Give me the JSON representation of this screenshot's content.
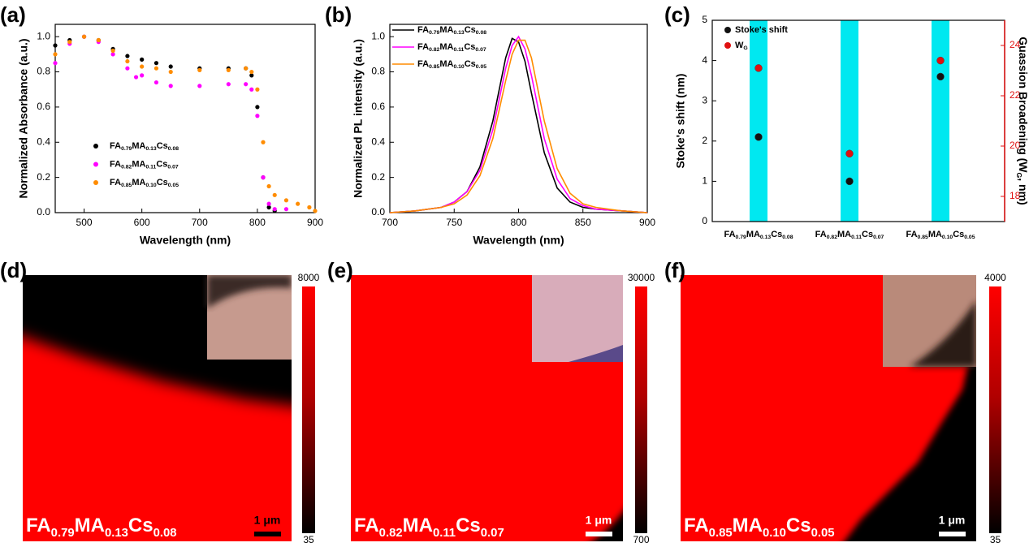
{
  "chart_data": [
    {
      "type": "scatter",
      "panel": "(a)",
      "x_label": "Wavelength (nm)",
      "y_label": "Normalized Absorbance (a.u.)",
      "xlim": [
        450,
        900
      ],
      "xticks": [
        500,
        600,
        700,
        800,
        900
      ],
      "ylim": [
        0,
        1.07
      ],
      "yticks": [
        {
          "value": 0,
          "label": "0.0"
        },
        0.2,
        0.4,
        0.6,
        0.8,
        {
          "value": 1,
          "label": "1.0"
        }
      ],
      "series": [
        {
          "name": "FA0.79MA0.13Cs0.08",
          "color": "#000000",
          "x": [
            450,
            475,
            500,
            525,
            550,
            575,
            600,
            625,
            650,
            700,
            750,
            780,
            790,
            800,
            810,
            820,
            830
          ],
          "values": [
            0.95,
            0.98,
            1.0,
            0.98,
            0.93,
            0.89,
            0.87,
            0.85,
            0.83,
            0.82,
            0.82,
            0.82,
            0.78,
            0.6,
            0.2,
            0.03,
            0.01
          ]
        },
        {
          "name": "FA0.82MA0.11Cs0.07",
          "color": "#ff00ff",
          "x": [
            450,
            475,
            500,
            525,
            550,
            575,
            590,
            600,
            625,
            650,
            700,
            750,
            780,
            790,
            800,
            810,
            820,
            830,
            850
          ],
          "values": [
            0.85,
            0.96,
            1.0,
            0.97,
            0.9,
            0.82,
            0.77,
            0.78,
            0.74,
            0.72,
            0.72,
            0.73,
            0.73,
            0.7,
            0.55,
            0.2,
            0.05,
            0.02,
            0.02
          ]
        },
        {
          "name": "FA0.85MA0.10Cs0.05",
          "color": "#ff8c00",
          "x": [
            450,
            475,
            500,
            525,
            550,
            575,
            600,
            625,
            650,
            700,
            750,
            780,
            790,
            800,
            810,
            820,
            830,
            850,
            870,
            890,
            900
          ],
          "values": [
            0.9,
            0.97,
            1.0,
            0.98,
            0.92,
            0.86,
            0.83,
            0.82,
            0.8,
            0.81,
            0.81,
            0.82,
            0.8,
            0.7,
            0.4,
            0.15,
            0.1,
            0.07,
            0.05,
            0.03,
            0.01
          ]
        }
      ]
    },
    {
      "type": "line",
      "panel": "(b)",
      "x_label": "Wavelength (nm)",
      "y_label": "Normalized PL intensity (a.u.)",
      "xlim": [
        700,
        900
      ],
      "xticks": [
        700,
        750,
        800,
        850,
        900
      ],
      "ylim": [
        0,
        1.07
      ],
      "yticks": [
        {
          "value": 0,
          "label": "0.0"
        },
        0.2,
        0.4,
        0.6,
        0.8,
        {
          "value": 1,
          "label": "1.0"
        }
      ],
      "x": [
        700,
        720,
        740,
        750,
        760,
        770,
        780,
        790,
        795,
        800,
        805,
        810,
        820,
        830,
        840,
        850,
        860,
        880,
        900
      ],
      "series": [
        {
          "name": "FA0.79MA0.13Cs0.08",
          "color": "#000000",
          "values": [
            0,
            0.01,
            0.03,
            0.06,
            0.12,
            0.26,
            0.52,
            0.88,
            0.99,
            0.97,
            0.86,
            0.68,
            0.34,
            0.14,
            0.06,
            0.03,
            0.02,
            0.01,
            0
          ]
        },
        {
          "name": "FA0.82MA0.11Cs0.07",
          "color": "#ff00ff",
          "values": [
            0,
            0.01,
            0.03,
            0.06,
            0.12,
            0.24,
            0.47,
            0.82,
            0.95,
            1.0,
            0.93,
            0.78,
            0.42,
            0.19,
            0.08,
            0.04,
            0.02,
            0.01,
            0
          ]
        },
        {
          "name": "FA0.85MA0.10Cs0.05",
          "color": "#ff8c00",
          "values": [
            0,
            0.01,
            0.03,
            0.05,
            0.1,
            0.21,
            0.42,
            0.75,
            0.9,
            0.98,
            0.98,
            0.88,
            0.52,
            0.25,
            0.11,
            0.05,
            0.03,
            0.01,
            0
          ]
        }
      ]
    },
    {
      "type": "dot",
      "panel": "(c)",
      "y_label": "Stoke's shift (nm)",
      "y2_label": "Guassion Broadening (WG, nm)",
      "categories": [
        "FA0.79MA0.13Cs0.08",
        "FA0.82MA0.11Cs0.07",
        "FA0.85MA0.10Cs0.05"
      ],
      "ylim": [
        0,
        5
      ],
      "yticks": [
        0,
        1,
        2,
        3,
        4,
        5
      ],
      "y2lim": [
        17,
        25
      ],
      "y2ticks": [
        18,
        20,
        22,
        24
      ],
      "series": [
        {
          "name": "Stoke's shift",
          "color": "#111111",
          "values": [
            2.1,
            1.0,
            3.6
          ]
        },
        {
          "name": "WG",
          "color": "#e01010",
          "axis": "y2",
          "values": [
            23.1,
            19.7,
            23.4
          ]
        }
      ]
    },
    {
      "type": "heatmap",
      "panel": "(d)",
      "label": "FA0.79MA0.13Cs0.08",
      "zlim": [
        35,
        8000
      ],
      "scale_bar": "1 μm"
    },
    {
      "type": "heatmap",
      "panel": "(e)",
      "label": "FA0.82MA0.11Cs0.07",
      "zlim": [
        700,
        30000
      ],
      "scale_bar": "1 μm"
    },
    {
      "type": "heatmap",
      "panel": "(f)",
      "label": "FA0.85MA0.10Cs0.05",
      "zlim": [
        35,
        4000
      ],
      "scale_bar": "1 μm"
    }
  ]
}
